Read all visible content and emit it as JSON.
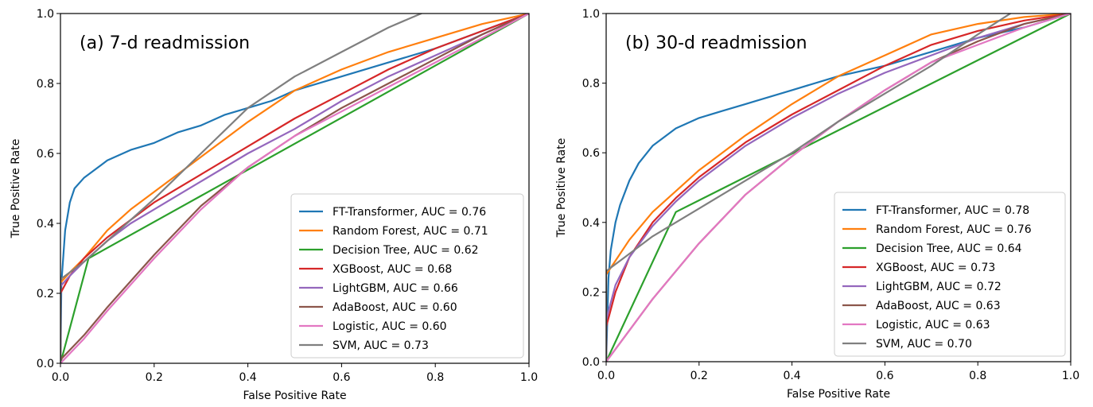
{
  "chart_data": [
    {
      "type": "line",
      "title": "(a) 7-d readmission",
      "xlabel": "False Positive Rate",
      "ylabel": "True Positive Rate",
      "xlim": [
        0,
        1
      ],
      "ylim": [
        0,
        1
      ],
      "xticks": [
        "0.0",
        "0.2",
        "0.4",
        "0.6",
        "0.8",
        "1.0"
      ],
      "yticks": [
        "0.0",
        "0.2",
        "0.4",
        "0.6",
        "0.8",
        "1.0"
      ],
      "grid": false,
      "legend_position": "lower-right",
      "series": [
        {
          "name": "FT-Transformer, AUC = 0.76",
          "color": "#1f77b4",
          "x": [
            0,
            0.002,
            0.01,
            0.02,
            0.03,
            0.05,
            0.08,
            0.1,
            0.15,
            0.2,
            0.25,
            0.3,
            0.35,
            0.4,
            0.45,
            0.5,
            0.6,
            0.7,
            0.8,
            0.9,
            1.0
          ],
          "y": [
            0,
            0.23,
            0.38,
            0.46,
            0.5,
            0.53,
            0.56,
            0.58,
            0.61,
            0.63,
            0.66,
            0.68,
            0.71,
            0.73,
            0.75,
            0.78,
            0.82,
            0.86,
            0.9,
            0.95,
            1.0
          ]
        },
        {
          "name": "Random Forest, AUC = 0.71",
          "color": "#ff7f0e",
          "x": [
            0,
            0.0,
            0.02,
            0.05,
            0.1,
            0.15,
            0.2,
            0.3,
            0.4,
            0.5,
            0.6,
            0.7,
            0.8,
            0.9,
            1.0
          ],
          "y": [
            0,
            0.23,
            0.26,
            0.3,
            0.38,
            0.44,
            0.49,
            0.59,
            0.69,
            0.78,
            0.84,
            0.89,
            0.93,
            0.97,
            1.0
          ]
        },
        {
          "name": "Decision Tree, AUC = 0.62",
          "color": "#2ca02c",
          "x": [
            0,
            0.06,
            1.0
          ],
          "y": [
            0,
            0.3,
            1.0
          ]
        },
        {
          "name": "XGBoost, AUC = 0.68",
          "color": "#d62728",
          "x": [
            0,
            0.0,
            0.02,
            0.05,
            0.1,
            0.15,
            0.2,
            0.3,
            0.4,
            0.5,
            0.6,
            0.7,
            0.8,
            0.9,
            1.0
          ],
          "y": [
            0,
            0.2,
            0.25,
            0.3,
            0.36,
            0.41,
            0.46,
            0.54,
            0.62,
            0.7,
            0.77,
            0.84,
            0.9,
            0.95,
            1.0
          ]
        },
        {
          "name": "LightGBM, AUC = 0.66",
          "color": "#9467bd",
          "x": [
            0,
            0.0,
            0.02,
            0.05,
            0.1,
            0.15,
            0.2,
            0.3,
            0.4,
            0.5,
            0.6,
            0.7,
            0.8,
            0.9,
            1.0
          ],
          "y": [
            0,
            0.22,
            0.25,
            0.29,
            0.35,
            0.4,
            0.44,
            0.52,
            0.6,
            0.67,
            0.75,
            0.82,
            0.88,
            0.94,
            1.0
          ]
        },
        {
          "name": "AdaBoost, AUC = 0.60",
          "color": "#8c564b",
          "x": [
            0,
            0.05,
            0.1,
            0.2,
            0.3,
            0.4,
            0.5,
            0.6,
            0.7,
            0.8,
            0.9,
            1.0
          ],
          "y": [
            0.01,
            0.08,
            0.16,
            0.31,
            0.45,
            0.56,
            0.65,
            0.73,
            0.8,
            0.87,
            0.94,
            1.0
          ]
        },
        {
          "name": "Logistic, AUC = 0.60",
          "color": "#e377c2",
          "x": [
            0,
            0.05,
            0.1,
            0.2,
            0.3,
            0.4,
            0.5,
            0.6,
            0.7,
            0.8,
            0.9,
            1.0
          ],
          "y": [
            0,
            0.07,
            0.15,
            0.3,
            0.44,
            0.56,
            0.65,
            0.72,
            0.79,
            0.86,
            0.93,
            1.0
          ]
        },
        {
          "name": "SVM, AUC = 0.73",
          "color": "#7f7f7f",
          "x": [
            0,
            0.0,
            0.05,
            0.1,
            0.2,
            0.3,
            0.4,
            0.5,
            0.6,
            0.7,
            0.77
          ],
          "y": [
            0,
            0.24,
            0.29,
            0.35,
            0.47,
            0.6,
            0.73,
            0.82,
            0.89,
            0.96,
            1.0
          ]
        }
      ]
    },
    {
      "type": "line",
      "title": "(b) 30-d readmission",
      "xlabel": "False Positive Rate",
      "ylabel": "True Positive Rate",
      "xlim": [
        0,
        1
      ],
      "ylim": [
        0,
        1
      ],
      "xticks": [
        "0.0",
        "0.2",
        "0.4",
        "0.6",
        "0.8",
        "1.0"
      ],
      "yticks": [
        "0.0",
        "0.2",
        "0.4",
        "0.6",
        "0.8",
        "1.0"
      ],
      "grid": false,
      "legend_position": "lower-right",
      "series": [
        {
          "name": "FT-Transformer, AUC = 0.78",
          "color": "#1f77b4",
          "x": [
            0,
            0.005,
            0.01,
            0.02,
            0.03,
            0.05,
            0.07,
            0.1,
            0.15,
            0.2,
            0.25,
            0.3,
            0.4,
            0.5,
            0.6,
            0.7,
            0.8,
            0.9,
            1.0
          ],
          "y": [
            0,
            0.24,
            0.32,
            0.4,
            0.45,
            0.52,
            0.57,
            0.62,
            0.67,
            0.7,
            0.72,
            0.74,
            0.78,
            0.82,
            0.85,
            0.89,
            0.93,
            0.96,
            1.0
          ]
        },
        {
          "name": "Random Forest, AUC = 0.76",
          "color": "#ff7f0e",
          "x": [
            0,
            0.0,
            0.02,
            0.05,
            0.1,
            0.15,
            0.2,
            0.3,
            0.4,
            0.5,
            0.6,
            0.7,
            0.8,
            0.9,
            1.0
          ],
          "y": [
            0,
            0.25,
            0.29,
            0.35,
            0.43,
            0.49,
            0.55,
            0.65,
            0.74,
            0.82,
            0.88,
            0.94,
            0.97,
            0.99,
            1.0
          ]
        },
        {
          "name": "Decision Tree, AUC = 0.64",
          "color": "#2ca02c",
          "x": [
            0,
            0.15,
            1.0
          ],
          "y": [
            0,
            0.43,
            1.0
          ]
        },
        {
          "name": "XGBoost, AUC = 0.73",
          "color": "#d62728",
          "x": [
            0,
            0.0,
            0.02,
            0.05,
            0.1,
            0.15,
            0.2,
            0.3,
            0.4,
            0.5,
            0.6,
            0.7,
            0.8,
            0.9,
            1.0
          ],
          "y": [
            0,
            0.1,
            0.2,
            0.3,
            0.4,
            0.47,
            0.53,
            0.63,
            0.71,
            0.78,
            0.85,
            0.91,
            0.95,
            0.98,
            1.0
          ]
        },
        {
          "name": "LightGBM, AUC = 0.72",
          "color": "#9467bd",
          "x": [
            0,
            0.0,
            0.02,
            0.05,
            0.1,
            0.15,
            0.2,
            0.3,
            0.4,
            0.5,
            0.6,
            0.7,
            0.8,
            0.9,
            1.0
          ],
          "y": [
            0,
            0.12,
            0.22,
            0.3,
            0.39,
            0.46,
            0.52,
            0.62,
            0.7,
            0.77,
            0.83,
            0.88,
            0.93,
            0.97,
            1.0
          ]
        },
        {
          "name": "AdaBoost, AUC = 0.63",
          "color": "#8c564b",
          "x": [
            0,
            0.05,
            0.1,
            0.2,
            0.3,
            0.4,
            0.5,
            0.6,
            0.7,
            0.8,
            0.9,
            1.0
          ],
          "y": [
            0,
            0.09,
            0.18,
            0.34,
            0.48,
            0.59,
            0.69,
            0.78,
            0.86,
            0.92,
            0.97,
            1.0
          ]
        },
        {
          "name": "Logistic, AUC = 0.63",
          "color": "#e377c2",
          "x": [
            0,
            0.05,
            0.1,
            0.2,
            0.3,
            0.4,
            0.5,
            0.6,
            0.7,
            0.8,
            0.9,
            1.0
          ],
          "y": [
            0,
            0.09,
            0.18,
            0.34,
            0.48,
            0.59,
            0.69,
            0.78,
            0.86,
            0.91,
            0.96,
            1.0
          ]
        },
        {
          "name": "SVM, AUC = 0.70",
          "color": "#7f7f7f",
          "x": [
            0,
            0.0,
            0.05,
            0.1,
            0.2,
            0.3,
            0.4,
            0.5,
            0.6,
            0.7,
            0.8,
            0.87
          ],
          "y": [
            0,
            0.26,
            0.31,
            0.36,
            0.44,
            0.52,
            0.6,
            0.69,
            0.77,
            0.85,
            0.94,
            1.0
          ]
        }
      ]
    }
  ]
}
